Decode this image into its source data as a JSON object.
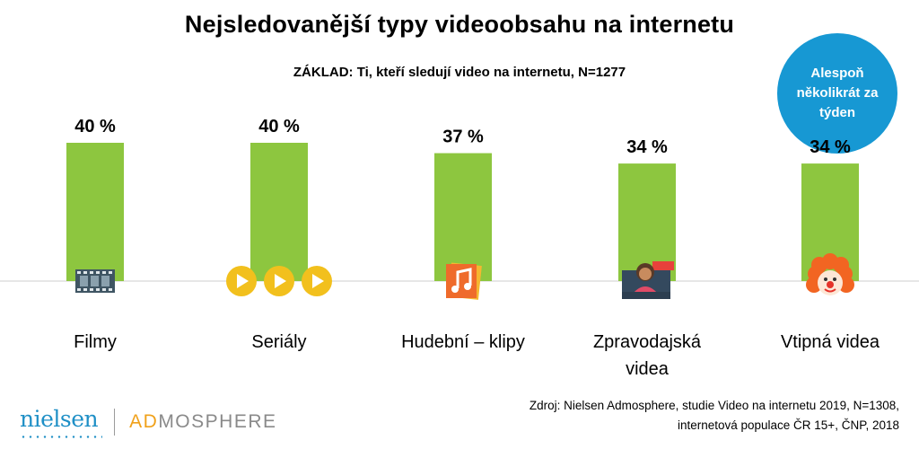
{
  "chart_data": {
    "type": "bar",
    "title": "Nejsledovanější typy videoobsahu na internetu",
    "subtitle": "ZÁKLAD: Ti, kteří sledují video na internetu, N=1277",
    "categories": [
      {
        "label": "Filmy",
        "lines": [
          "Filmy"
        ],
        "icon": "film-strip-icon"
      },
      {
        "label": "Seriály",
        "lines": [
          "Seriály"
        ],
        "icon": "play-buttons-icon"
      },
      {
        "label": "Hudební – klipy",
        "lines": [
          "Hudební – klipy"
        ],
        "icon": "music-note-icon"
      },
      {
        "label": "Zpravodajská videa",
        "lines": [
          "Zpravodajská",
          "videa"
        ],
        "icon": "news-anchor-icon"
      },
      {
        "label": "Vtipná videa",
        "lines": [
          "Vtipná videa"
        ],
        "icon": "clown-icon"
      }
    ],
    "values": [
      40,
      40,
      37,
      34,
      34
    ],
    "value_labels": [
      "40 %",
      "40 %",
      "37 %",
      "34 %",
      "34 %"
    ],
    "unit": "%",
    "ylim": [
      0,
      40
    ],
    "grid": false,
    "bar_color": "#8dc63f"
  },
  "badge": {
    "text": "Alespoň několikrát za týden",
    "color": "#1798d3"
  },
  "footer": {
    "logo_nielsen": "nielsen",
    "logo_ad": "AD",
    "logo_mosphere": "MOSPHERE",
    "source_line1": "Zdroj: Nielsen Admosphere, studie Video na internetu 2019, N=1308,",
    "source_line2": "internetová populace ČR 15+, ČNP, 2018"
  }
}
